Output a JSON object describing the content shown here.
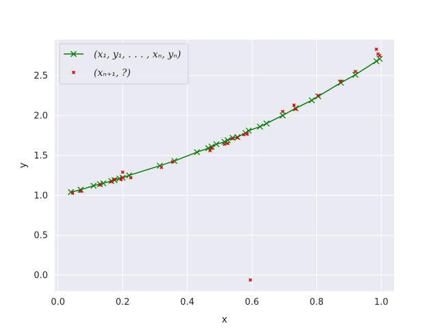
{
  "chart_data": {
    "type": "line",
    "xlabel": "x",
    "ylabel": "y",
    "xlim": [
      -0.01,
      1.04
    ],
    "ylim": [
      -0.2,
      2.95
    ],
    "xticks": [
      0.0,
      0.2,
      0.4,
      0.6,
      0.8,
      1.0
    ],
    "yticks": [
      0.0,
      0.5,
      1.0,
      1.5,
      2.0,
      2.5
    ],
    "xtick_labels": [
      "0.0",
      "0.2",
      "0.4",
      "0.6",
      "0.8",
      "1.0"
    ],
    "ytick_labels": [
      "0.0",
      "0.5",
      "1.0",
      "1.5",
      "2.0",
      "2.5"
    ],
    "grid": true,
    "legend_position": "top-left",
    "background_color": "#eaeaf2",
    "series": [
      {
        "name": "(x1, y1, ..., xn, yn)",
        "legend_label": "(x₁, y₁, . . . , xₙ, yₙ)",
        "color": "#008000",
        "marker": "x",
        "style": "line",
        "x": [
          0.04,
          0.07,
          0.11,
          0.13,
          0.14,
          0.165,
          0.175,
          0.19,
          0.2,
          0.22,
          0.315,
          0.36,
          0.43,
          0.465,
          0.475,
          0.49,
          0.515,
          0.525,
          0.54,
          0.555,
          0.58,
          0.59,
          0.625,
          0.645,
          0.695,
          0.735,
          0.785,
          0.805,
          0.875,
          0.92,
          0.985,
          0.995
        ],
        "y": [
          1.04,
          1.07,
          1.12,
          1.14,
          1.15,
          1.18,
          1.19,
          1.21,
          1.22,
          1.25,
          1.37,
          1.43,
          1.54,
          1.59,
          1.61,
          1.64,
          1.67,
          1.69,
          1.72,
          1.73,
          1.78,
          1.81,
          1.86,
          1.9,
          2.0,
          2.09,
          2.19,
          2.24,
          2.41,
          2.51,
          2.68,
          2.71
        ]
      },
      {
        "name": "(xn+1, ?)",
        "legend_label": "(xₙ₊₁, ?)",
        "color": "#e00000",
        "marker": "x-small",
        "style": "scatter",
        "x": [
          0.045,
          0.07,
          0.13,
          0.165,
          0.175,
          0.195,
          0.2,
          0.2,
          0.225,
          0.32,
          0.355,
          0.47,
          0.475,
          0.515,
          0.525,
          0.54,
          0.555,
          0.575,
          0.585,
          0.595,
          0.695,
          0.73,
          0.735,
          0.805,
          0.875,
          0.92,
          0.985,
          0.99,
          0.995
        ],
        "y": [
          1.03,
          1.05,
          1.13,
          1.17,
          1.2,
          1.2,
          1.29,
          1.22,
          1.22,
          1.35,
          1.42,
          1.56,
          1.59,
          1.64,
          1.65,
          1.71,
          1.72,
          1.76,
          1.77,
          -0.06,
          2.05,
          2.13,
          2.08,
          2.25,
          2.43,
          2.55,
          2.83,
          2.77,
          2.75
        ]
      }
    ]
  }
}
